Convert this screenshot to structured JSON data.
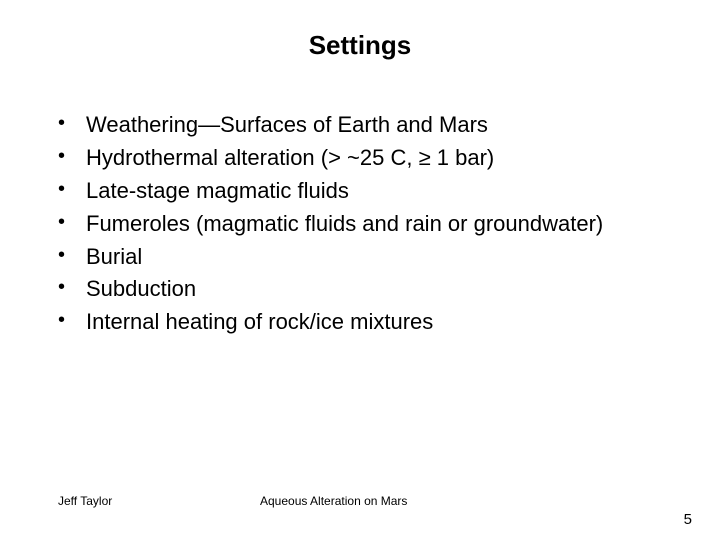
{
  "slide": {
    "title": "Settings",
    "bullets": [
      "Weathering—Surfaces of Earth and Mars",
      "Hydrothermal alteration (> ~25 C, ≥ 1 bar)",
      "Late-stage magmatic fluids",
      "Fumeroles (magmatic fluids and rain or groundwater)",
      "Burial",
      "Subduction",
      "Internal heating of rock/ice mixtures"
    ],
    "footer_left": "Jeff Taylor",
    "footer_center": "Aqueous Alteration on Mars",
    "page_number": "5"
  },
  "style": {
    "background_color": "#ffffff",
    "title_fontsize": 26,
    "title_fontweight": "bold",
    "body_fontsize": 22,
    "footer_fontsize": 12,
    "page_number_fontsize": 15,
    "text_color": "#000000",
    "font_family": "Arial, sans-serif"
  }
}
